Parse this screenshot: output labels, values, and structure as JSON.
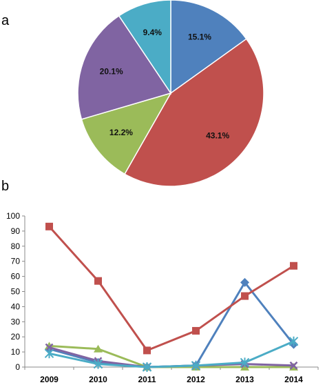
{
  "panels": {
    "a": "a",
    "b": "b"
  },
  "chart_data": [
    {
      "type": "pie",
      "slices": [
        {
          "label": "15.1%",
          "value": 15.1,
          "color": "#4f81bd"
        },
        {
          "label": "43.1%",
          "value": 43.1,
          "color": "#c0504d"
        },
        {
          "label": "12.2%",
          "value": 12.2,
          "color": "#9bbb59"
        },
        {
          "label": "20.1%",
          "value": 20.1,
          "color": "#8064a2"
        },
        {
          "label": "9.4%",
          "value": 9.4,
          "color": "#4bacc6"
        }
      ]
    },
    {
      "type": "line",
      "x": [
        "2009",
        "2010",
        "2011",
        "2012",
        "2013",
        "2014"
      ],
      "ylim": [
        0,
        100
      ],
      "yticks": [
        0,
        10,
        20,
        30,
        40,
        50,
        60,
        70,
        80,
        90,
        100
      ],
      "grid": false,
      "series": [
        {
          "color": "#4f81bd",
          "marker": "diamond",
          "values": [
            12,
            3,
            0,
            1,
            56,
            15
          ]
        },
        {
          "color": "#c0504d",
          "marker": "square",
          "values": [
            93,
            57,
            11,
            24,
            47,
            67
          ]
        },
        {
          "color": "#9bbb59",
          "marker": "triangle",
          "values": [
            14,
            12,
            0,
            0,
            0,
            0
          ]
        },
        {
          "color": "#8064a2",
          "marker": "x",
          "values": [
            13,
            4,
            0,
            1,
            2,
            1
          ]
        },
        {
          "color": "#4bacc6",
          "marker": "star",
          "values": [
            9,
            2,
            0,
            1,
            3,
            17
          ]
        }
      ]
    }
  ]
}
